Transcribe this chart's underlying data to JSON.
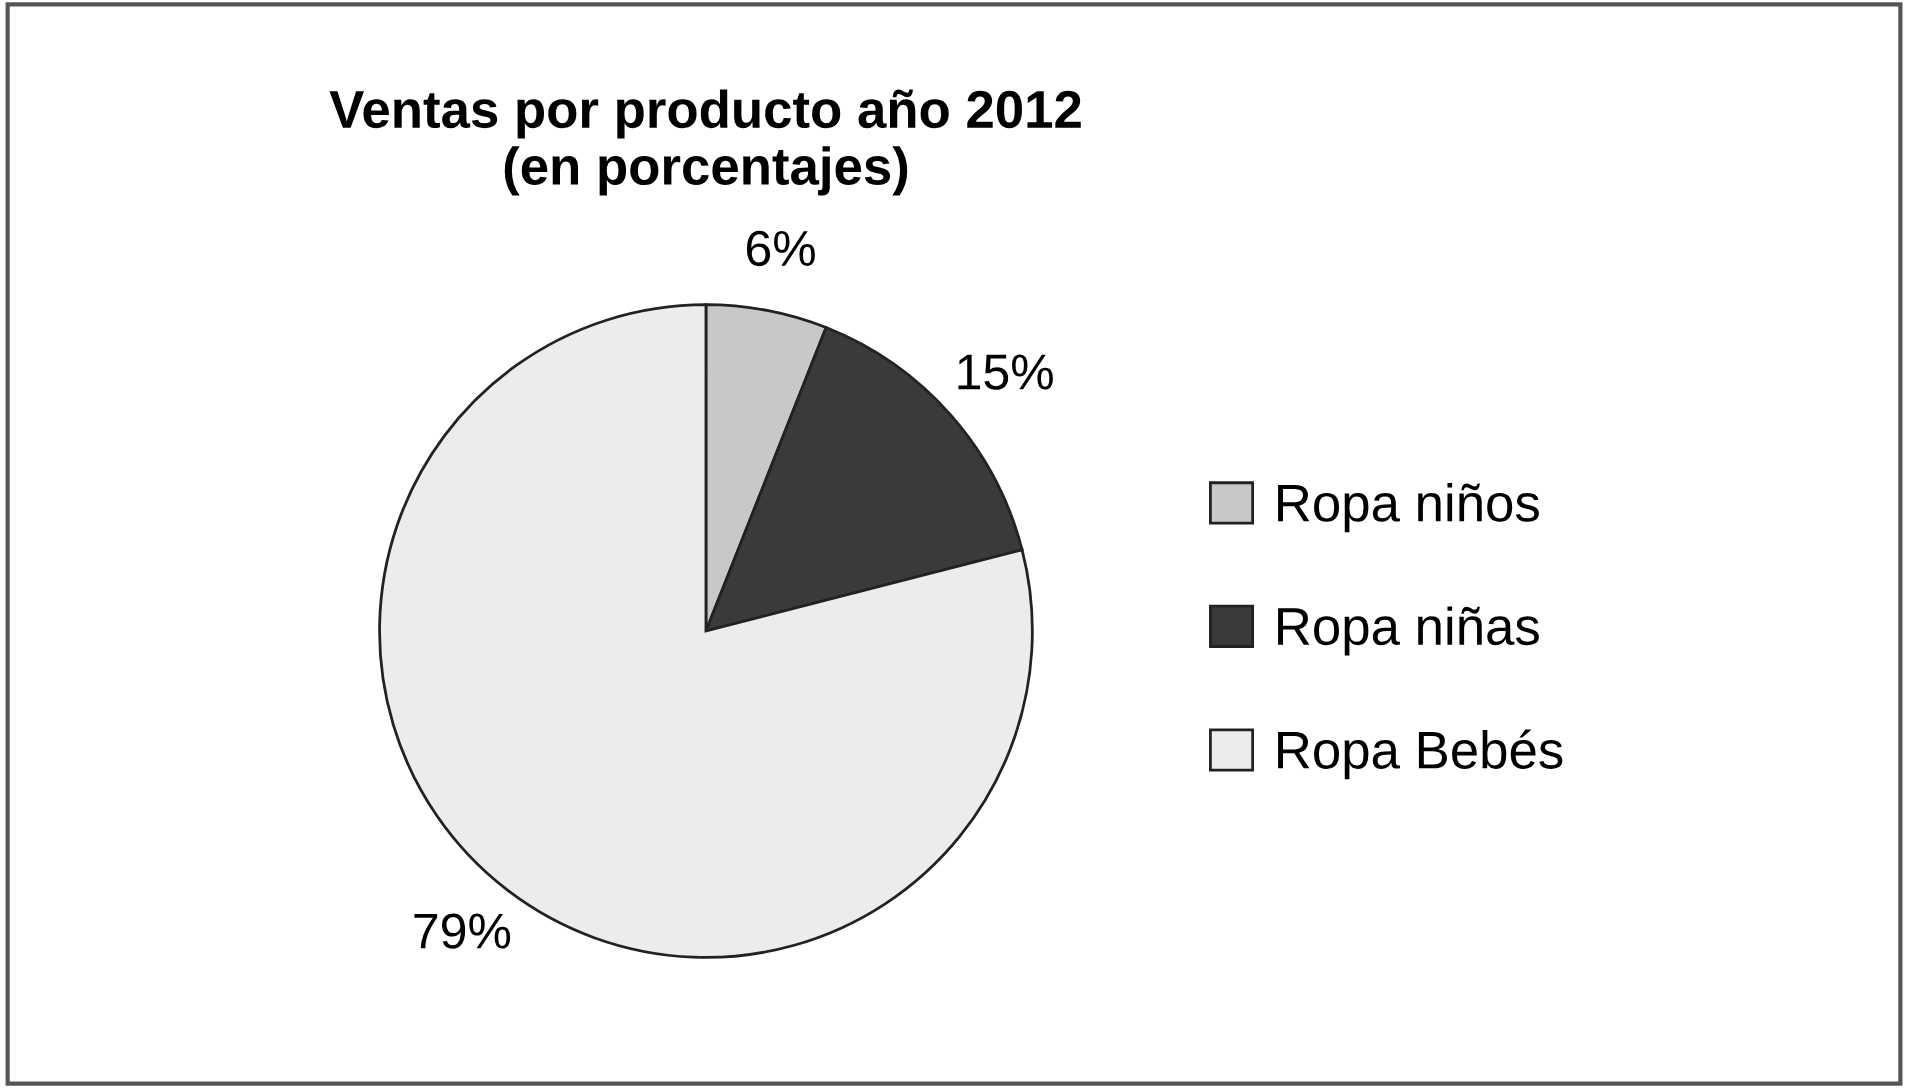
{
  "chart_data": {
    "type": "pie",
    "title": "Ventas por producto año 2012\n(en porcentajes)",
    "categories": [
      "Ropa niños",
      "Ropa niñas",
      "Ropa Bebés"
    ],
    "values": [
      6,
      15,
      79
    ],
    "value_labels": [
      "6%",
      "15%",
      "79%"
    ],
    "colors": [
      "#c8c8c8",
      "#3a3a3a",
      "#ececec"
    ],
    "legend": "right"
  }
}
